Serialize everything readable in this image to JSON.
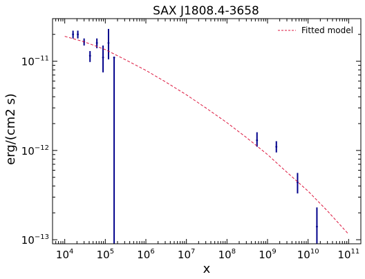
{
  "chart_data": {
    "type": "scatter",
    "title": "SAX J1808.4-3658",
    "xlabel": "x",
    "ylabel": "erg/(cm2 s)",
    "xscale": "log",
    "yscale": "log",
    "xlim": [
      5000,
      200000000000
    ],
    "ylim": [
      9e-14,
      3e-11
    ],
    "x_ticks": [
      {
        "base": "10",
        "exp": "4",
        "value": 10000
      },
      {
        "base": "10",
        "exp": "5",
        "value": 100000
      },
      {
        "base": "10",
        "exp": "6",
        "value": 1000000
      },
      {
        "base": "10",
        "exp": "7",
        "value": 10000000
      },
      {
        "base": "10",
        "exp": "8",
        "value": 100000000
      },
      {
        "base": "10",
        "exp": "9",
        "value": 1000000000
      },
      {
        "base": "10",
        "exp": "10",
        "value": 10000000000
      },
      {
        "base": "10",
        "exp": "11",
        "value": 100000000000
      }
    ],
    "y_ticks": [
      {
        "base": "10",
        "exp": "−13",
        "value": 1e-13
      },
      {
        "base": "10",
        "exp": "−12",
        "value": 1e-12
      },
      {
        "base": "10",
        "exp": "−11",
        "value": 1e-11
      }
    ],
    "grid": false,
    "legend": {
      "position": "top-right",
      "entries": [
        "Fitted model"
      ]
    },
    "series": [
      {
        "name": "",
        "kind": "errorbar",
        "color": "#00008b",
        "points": [
          {
            "x": 16000,
            "y": 2e-11,
            "ylo": 1.8e-11,
            "yhi": 2.2e-11
          },
          {
            "x": 21000,
            "y": 2e-11,
            "ylo": 1.8e-11,
            "yhi": 2.2e-11
          },
          {
            "x": 30000,
            "y": 1.65e-11,
            "ylo": 1.5e-11,
            "yhi": 1.8e-11
          },
          {
            "x": 42000,
            "y": 1.15e-11,
            "ylo": 9.8e-12,
            "yhi": 1.3e-11
          },
          {
            "x": 62000,
            "y": 1.6e-11,
            "ylo": 1.4e-11,
            "yhi": 1.8e-11
          },
          {
            "x": 88000,
            "y": 1.1e-11,
            "ylo": 7.5e-12,
            "yhi": 1.5e-11
          },
          {
            "x": 120000,
            "y": 1.6e-11,
            "ylo": 1.05e-11,
            "yhi": 2.3e-11
          },
          {
            "x": 165000,
            "y": 1.1e-11,
            "ylo": 9e-14,
            "yhi": 1.1e-11
          },
          {
            "x": 550000000,
            "y": 1.3e-12,
            "ylo": 1.1e-12,
            "yhi": 1.6e-12
          },
          {
            "x": 1650000000,
            "y": 1.1e-12,
            "ylo": 9.5e-13,
            "yhi": 1.27e-12
          },
          {
            "x": 5500000000,
            "y": 4.4e-13,
            "ylo": 3.3e-13,
            "yhi": 5.6e-13
          },
          {
            "x": 16500000000,
            "y": 1.4e-13,
            "ylo": 9e-14,
            "yhi": 2.3e-13
          }
        ]
      },
      {
        "name": "Fitted model",
        "kind": "line",
        "style": "dashed",
        "color": "#dc143c",
        "x": [
          10000,
          30000,
          100000,
          300000,
          1000000,
          3000000,
          10000000,
          30000000,
          100000000,
          300000000,
          1000000000,
          3000000000,
          10000000000,
          30000000000,
          100000000000
        ],
        "y": [
          1.9e-11,
          1.65e-11,
          1.35e-11,
          1.05e-11,
          7.9e-12,
          5.9e-12,
          4.2e-12,
          3e-12,
          2.05e-12,
          1.4e-12,
          9e-13,
          5.7e-13,
          3.5e-13,
          2.1e-13,
          1.15e-13
        ]
      }
    ]
  }
}
